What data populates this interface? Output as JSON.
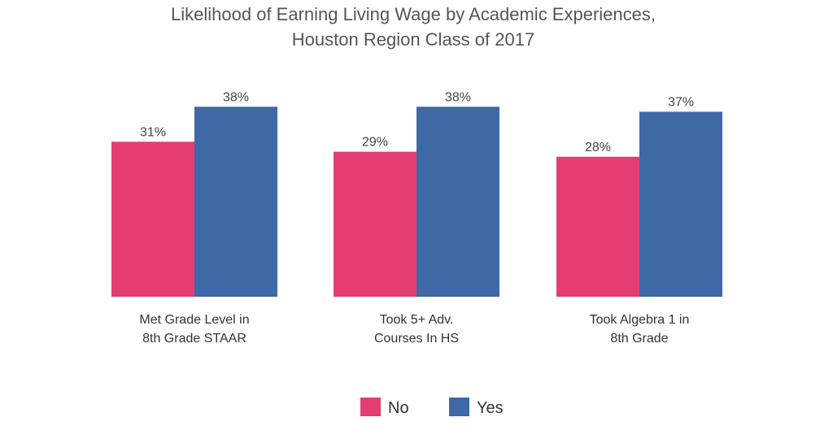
{
  "chart_data": {
    "type": "bar",
    "title_lines": [
      "Likelihood of Earning Living Wage by Academic Experiences,",
      "Houston Region Class of 2017"
    ],
    "categories": [
      [
        "Met Grade Level in",
        "8th Grade STAAR"
      ],
      [
        "Took 5+ Adv.",
        "Courses In HS"
      ],
      [
        "Took Algebra 1 in",
        "8th Grade"
      ]
    ],
    "series": [
      {
        "name": "No",
        "values": [
          31,
          29,
          28
        ],
        "labels": [
          "31%",
          "29%",
          "28%"
        ],
        "color": "#E33D73"
      },
      {
        "name": "Yes",
        "values": [
          38,
          38,
          37
        ],
        "labels": [
          "38%",
          "38%",
          "37%"
        ],
        "color": "#3F68A6"
      }
    ],
    "ylim": [
      0,
      40
    ],
    "grid": false,
    "legend_position": "bottom"
  }
}
